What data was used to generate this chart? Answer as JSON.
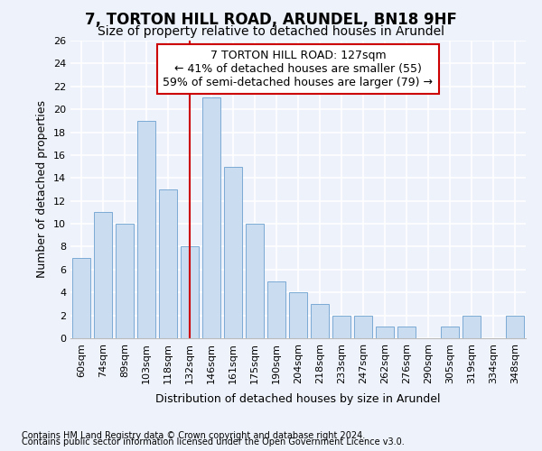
{
  "title": "7, TORTON HILL ROAD, ARUNDEL, BN18 9HF",
  "subtitle": "Size of property relative to detached houses in Arundel",
  "xlabel": "Distribution of detached houses by size in Arundel",
  "ylabel": "Number of detached properties",
  "categories": [
    "60sqm",
    "74sqm",
    "89sqm",
    "103sqm",
    "118sqm",
    "132sqm",
    "146sqm",
    "161sqm",
    "175sqm",
    "190sqm",
    "204sqm",
    "218sqm",
    "233sqm",
    "247sqm",
    "262sqm",
    "276sqm",
    "290sqm",
    "305sqm",
    "319sqm",
    "334sqm",
    "348sqm"
  ],
  "values": [
    7,
    11,
    10,
    19,
    13,
    8,
    21,
    15,
    10,
    5,
    4,
    3,
    2,
    2,
    1,
    1,
    0,
    1,
    2,
    0,
    2
  ],
  "bar_color": "#c9dcf0",
  "bar_edge_color": "#7aaad4",
  "ref_line_x": 5,
  "ref_line_label": "7 TORTON HILL ROAD: 127sqm",
  "annotation_line1": "← 41% of detached houses are smaller (55)",
  "annotation_line2": "59% of semi-detached houses are larger (79) →",
  "annotation_box_facecolor": "#ffffff",
  "annotation_box_edgecolor": "#cc0000",
  "ylim": [
    0,
    26
  ],
  "yticks": [
    0,
    2,
    4,
    6,
    8,
    10,
    12,
    14,
    16,
    18,
    20,
    22,
    24,
    26
  ],
  "background_color": "#eef2fb",
  "grid_color": "#ffffff",
  "footer_line1": "Contains HM Land Registry data © Crown copyright and database right 2024.",
  "footer_line2": "Contains public sector information licensed under the Open Government Licence v3.0.",
  "title_fontsize": 12,
  "subtitle_fontsize": 10,
  "axis_label_fontsize": 9,
  "tick_fontsize": 8,
  "annotation_fontsize": 9,
  "footer_fontsize": 7
}
